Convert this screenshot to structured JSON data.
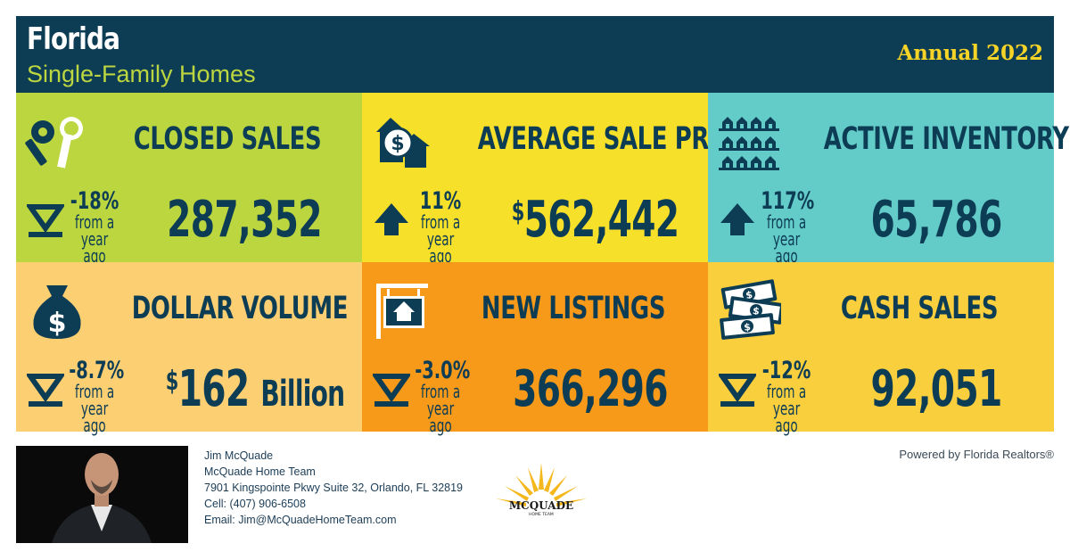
{
  "header": {
    "state": "Florida",
    "property_type": "Single-Family Homes",
    "period": "Annual 2022",
    "background": "#0d3c55"
  },
  "tiles": [
    {
      "title": "CLOSED SALES",
      "icon": "keys-icon",
      "direction": "down",
      "change": "-18%",
      "comparison_line1": "from a",
      "comparison_line2": "year ago",
      "value_prefix": "",
      "value": "287,352",
      "value_unit": "",
      "color": "#bcd63f"
    },
    {
      "title": "AVERAGE SALE PRICE",
      "icon": "house-dollar-icon",
      "direction": "up",
      "change": "11%",
      "comparison_line1": "from a",
      "comparison_line2": "year ago",
      "value_prefix": "$",
      "value": "562,442",
      "value_unit": "",
      "color": "#f7e02a"
    },
    {
      "title": "ACTIVE INVENTORY",
      "icon": "houses-grid-icon",
      "direction": "up",
      "change": "117%",
      "comparison_line1": "from a",
      "comparison_line2": "year ago",
      "value_prefix": "",
      "value": "65,786",
      "value_unit": "",
      "color": "#64ccc8"
    },
    {
      "title": "DOLLAR VOLUME",
      "icon": "money-bag-icon",
      "direction": "down",
      "change": "-8.7%",
      "comparison_line1": "from a",
      "comparison_line2": "year ago",
      "value_prefix": "$",
      "value": "162",
      "value_unit": "Billion",
      "color": "#fccf73"
    },
    {
      "title": "NEW LISTINGS",
      "icon": "listing-sign-icon",
      "direction": "down",
      "change": "-3.0%",
      "comparison_line1": "from a",
      "comparison_line2": "year ago",
      "value_prefix": "",
      "value": "366,296",
      "value_unit": "",
      "color": "#f79a1a"
    },
    {
      "title": "CASH SALES",
      "icon": "cash-bills-icon",
      "direction": "down",
      "change": "-12%",
      "comparison_line1": "from a",
      "comparison_line2": "year ago",
      "value_prefix": "",
      "value": "92,051",
      "value_unit": "",
      "color": "#f9cf3e"
    }
  ],
  "agent": {
    "name": "Jim McQuade",
    "team": "McQuade Home Team",
    "address": "7901 Kingspointe Pkwy Suite 32, Orlando, FL 32819",
    "cell": "Cell: (407) 906-6508",
    "email": "Email: Jim@McQuadeHomeTeam.com"
  },
  "logo": {
    "name": "MCQUADE",
    "tagline": "HOME TEAM"
  },
  "powered_by": "Powered by Florida Realtors®",
  "colors": {
    "ink": "#0d3c55",
    "accent_green": "#bcd63f",
    "accent_yellow": "#f5d327"
  }
}
